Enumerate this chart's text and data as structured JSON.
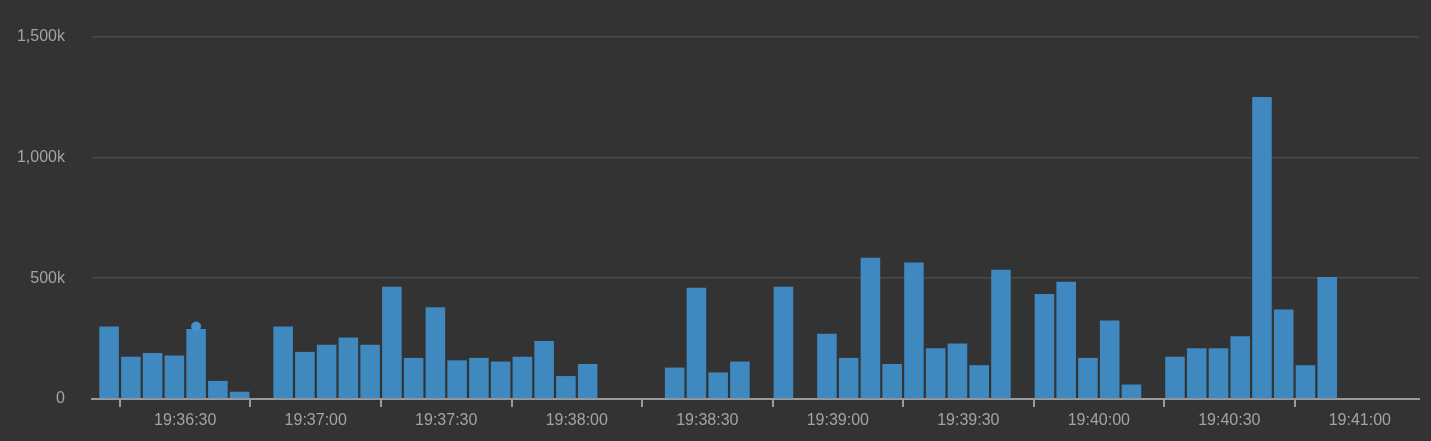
{
  "chart_data": {
    "type": "bar",
    "series": [
      {
        "color": "#3f88c0",
        "x": [
          19.603472,
          19.604861,
          19.60625,
          19.607639,
          19.609028,
          19.610417,
          19.611806,
          19.614583,
          19.615972,
          19.617361,
          19.61875,
          19.620139,
          19.621528,
          19.622917,
          19.624306,
          19.625694,
          19.627083,
          19.628472,
          19.629861,
          19.63125,
          19.632639,
          19.634028,
          19.639583,
          19.640972,
          19.642361,
          19.64375,
          19.646528,
          19.649306,
          19.650694,
          19.652083,
          19.653472,
          19.654861,
          19.65625,
          19.657639,
          19.659028,
          19.660417,
          19.663194,
          19.664583,
          19.665972,
          19.667361,
          19.66875,
          19.671528,
          19.672917,
          19.674306,
          19.675694,
          19.677083,
          19.678472,
          19.679861,
          19.68125
        ],
        "values": [
          300000,
          175000,
          190000,
          180000,
          290000,
          75000,
          30000,
          300000,
          195000,
          225000,
          255000,
          225000,
          465000,
          170000,
          380000,
          160000,
          170000,
          155000,
          175000,
          240000,
          95000,
          145000,
          130000,
          460000,
          110000,
          155000,
          465000,
          270000,
          170000,
          585000,
          145000,
          565000,
          210000,
          230000,
          140000,
          535000,
          435000,
          485000,
          170000,
          325000,
          60000,
          175000,
          210000,
          210000,
          260000,
          1250000,
          370000,
          140000,
          505000
        ]
      },
      {
        "type": "scatter",
        "color": "#4690d0",
        "x": [
          19.609028
        ],
        "values": [
          300000
        ]
      }
    ],
    "xlim": [
      19.60238,
      19.68711
    ],
    "xticks": [
      {
        "value": 19.608333,
        "label": "19:36:30"
      },
      {
        "value": 19.616667,
        "label": "19:37:00"
      },
      {
        "value": 19.625,
        "label": "19:37:30"
      },
      {
        "value": 19.633333,
        "label": "19:38:00"
      },
      {
        "value": 19.641667,
        "label": "19:38:30"
      },
      {
        "value": 19.65,
        "label": "19:39:00"
      },
      {
        "value": 19.658333,
        "label": "19:39:30"
      },
      {
        "value": 19.666667,
        "label": "19:40:00"
      },
      {
        "value": 19.675,
        "label": "19:40:30"
      },
      {
        "value": 19.683333,
        "label": "19:41:00"
      }
    ],
    "ylim": [
      0,
      1500000
    ],
    "yticks": [
      0,
      {
        "value": 500000,
        "label": "500k"
      },
      {
        "value": 1000000,
        "label": "1,000k"
      },
      {
        "value": 1500000,
        "label": "1,500k"
      }
    ],
    "grid": "y",
    "marker": "circle"
  }
}
